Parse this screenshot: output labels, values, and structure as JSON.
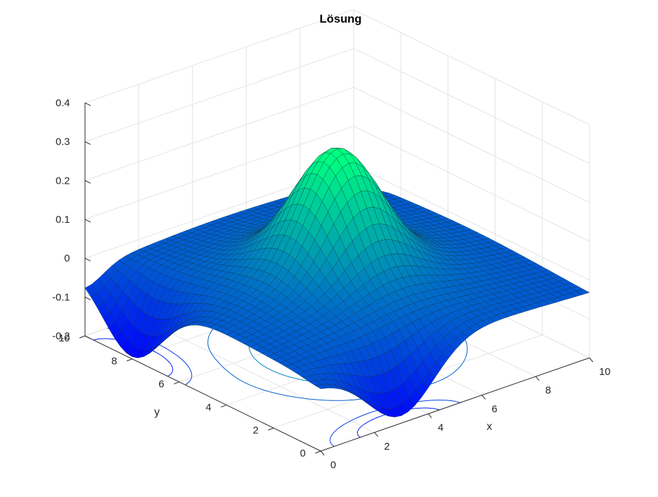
{
  "chart_data": {
    "type": "surface",
    "title": "Lösung",
    "xlabel": "x",
    "ylabel": "y",
    "zlabel": "",
    "xlim": [
      0,
      10
    ],
    "ylim": [
      0,
      10
    ],
    "zlim": [
      -0.2,
      0.4
    ],
    "xticks": [
      "0",
      "2",
      "4",
      "6",
      "8",
      "10"
    ],
    "yticks": [
      "0",
      "2",
      "4",
      "6",
      "8",
      "10"
    ],
    "zticks": [
      "-0.2",
      "-0.1",
      "0",
      "0.1",
      "0.2",
      "0.3",
      "0.4"
    ],
    "grid": true,
    "colormap": "winter",
    "colors": {
      "low": "#0000ff",
      "high": "#00ff80",
      "mesh": "#0b1f2a",
      "grid": "#e3e3e3",
      "axis": "#262626"
    },
    "peak": {
      "x": 5,
      "y": 5,
      "z": 0.29
    },
    "surface_features": [
      {
        "description": "negative dip",
        "x": 0,
        "y": 8,
        "z": -0.19
      },
      {
        "description": "negative dip",
        "x": 3,
        "y": 0,
        "z": -0.18
      },
      {
        "description": "shallow dip",
        "x": 10,
        "y": 10,
        "z": -0.06
      }
    ],
    "contour_levels": [
      -0.1,
      -0.05,
      0.0,
      0.05,
      0.1,
      0.15,
      0.2,
      0.25
    ]
  }
}
